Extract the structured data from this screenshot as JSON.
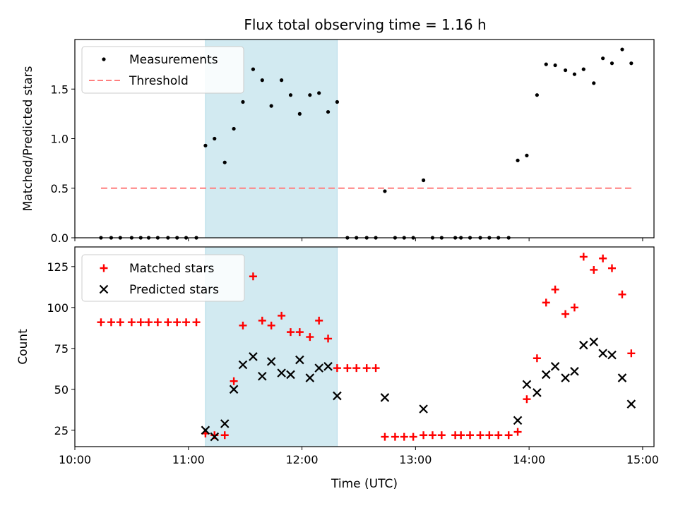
{
  "chart_data": {
    "type": "scatter",
    "title": "Flux total observing time = 1.16 h",
    "xlabel": "Time (UTC)",
    "xlim": [
      10.0,
      15.1
    ],
    "xticks": [
      {
        "v": 10,
        "label": "10:00"
      },
      {
        "v": 11,
        "label": "11:00"
      },
      {
        "v": 12,
        "label": "12:00"
      },
      {
        "v": 13,
        "label": "13:00"
      },
      {
        "v": 14,
        "label": "14:00"
      },
      {
        "v": 15,
        "label": "15:00"
      }
    ],
    "shaded_region": {
      "x": [
        11.15,
        12.31
      ],
      "color": "#add8e6"
    },
    "panels": [
      {
        "ylabel": "Matched/Predicted stars",
        "ylim": [
          0,
          2.0
        ],
        "yticks": [
          {
            "v": 0,
            "label": "0.0"
          },
          {
            "v": 0.5,
            "label": "0.5"
          },
          {
            "v": 1.0,
            "label": "1.0"
          },
          {
            "v": 1.5,
            "label": "1.5"
          }
        ],
        "legend": [
          {
            "label": "Measurements",
            "marker": "dot",
            "color": "#000000"
          },
          {
            "label": "Threshold",
            "marker": "dashed-line",
            "color": "#ff7f7f"
          }
        ],
        "threshold": {
          "y": 0.5,
          "x": [
            10.23,
            14.9
          ],
          "color": "#ff7f7f"
        },
        "measurements": [
          [
            10.23,
            0
          ],
          [
            10.32,
            0
          ],
          [
            10.4,
            0
          ],
          [
            10.5,
            0
          ],
          [
            10.58,
            0
          ],
          [
            10.65,
            0
          ],
          [
            10.73,
            0
          ],
          [
            10.82,
            0
          ],
          [
            10.9,
            0
          ],
          [
            10.98,
            0
          ],
          [
            11.07,
            0
          ],
          [
            11.15,
            0.93
          ],
          [
            11.23,
            1.0
          ],
          [
            11.32,
            0.76
          ],
          [
            11.4,
            1.1
          ],
          [
            11.48,
            1.37
          ],
          [
            11.57,
            1.7
          ],
          [
            11.65,
            1.59
          ],
          [
            11.73,
            1.33
          ],
          [
            11.82,
            1.59
          ],
          [
            11.9,
            1.44
          ],
          [
            11.98,
            1.25
          ],
          [
            12.07,
            1.44
          ],
          [
            12.15,
            1.46
          ],
          [
            12.23,
            1.27
          ],
          [
            12.31,
            1.37
          ],
          [
            12.4,
            0
          ],
          [
            12.48,
            0
          ],
          [
            12.57,
            0
          ],
          [
            12.65,
            0
          ],
          [
            12.73,
            0.47
          ],
          [
            12.82,
            0
          ],
          [
            12.9,
            0
          ],
          [
            12.98,
            0
          ],
          [
            13.07,
            0.58
          ],
          [
            13.15,
            0
          ],
          [
            13.23,
            0
          ],
          [
            13.35,
            0
          ],
          [
            13.4,
            0
          ],
          [
            13.48,
            0
          ],
          [
            13.57,
            0
          ],
          [
            13.65,
            0
          ],
          [
            13.73,
            0
          ],
          [
            13.82,
            0
          ],
          [
            13.9,
            0.78
          ],
          [
            13.98,
            0.83
          ],
          [
            14.07,
            1.44
          ],
          [
            14.15,
            1.75
          ],
          [
            14.23,
            1.74
          ],
          [
            14.32,
            1.69
          ],
          [
            14.4,
            1.65
          ],
          [
            14.48,
            1.7
          ],
          [
            14.57,
            1.56
          ],
          [
            14.65,
            1.81
          ],
          [
            14.73,
            1.76
          ],
          [
            14.82,
            1.9
          ],
          [
            14.9,
            1.76
          ]
        ]
      },
      {
        "ylabel": "Count",
        "ylim": [
          15,
          137
        ],
        "yticks": [
          {
            "v": 25,
            "label": "25"
          },
          {
            "v": 50,
            "label": "50"
          },
          {
            "v": 75,
            "label": "75"
          },
          {
            "v": 100,
            "label": "100"
          },
          {
            "v": 125,
            "label": "125"
          }
        ],
        "legend": [
          {
            "label": "Matched stars",
            "marker": "plus",
            "color": "#ff0000"
          },
          {
            "label": "Predicted stars",
            "marker": "x",
            "color": "#000000"
          }
        ],
        "matched": [
          [
            10.23,
            91
          ],
          [
            10.32,
            91
          ],
          [
            10.4,
            91
          ],
          [
            10.5,
            91
          ],
          [
            10.58,
            91
          ],
          [
            10.65,
            91
          ],
          [
            10.73,
            91
          ],
          [
            10.82,
            91
          ],
          [
            10.9,
            91
          ],
          [
            10.98,
            91
          ],
          [
            11.07,
            91
          ],
          [
            11.15,
            23
          ],
          [
            11.23,
            22
          ],
          [
            11.32,
            22
          ],
          [
            11.4,
            55
          ],
          [
            11.48,
            89
          ],
          [
            11.57,
            119
          ],
          [
            11.65,
            92
          ],
          [
            11.73,
            89
          ],
          [
            11.82,
            95
          ],
          [
            11.9,
            85
          ],
          [
            11.98,
            85
          ],
          [
            12.07,
            82
          ],
          [
            12.15,
            92
          ],
          [
            12.23,
            81
          ],
          [
            12.31,
            63
          ],
          [
            12.4,
            63
          ],
          [
            12.48,
            63
          ],
          [
            12.57,
            63
          ],
          [
            12.65,
            63
          ],
          [
            12.73,
            21
          ],
          [
            12.82,
            21
          ],
          [
            12.9,
            21
          ],
          [
            12.98,
            21
          ],
          [
            13.07,
            22
          ],
          [
            13.15,
            22
          ],
          [
            13.23,
            22
          ],
          [
            13.35,
            22
          ],
          [
            13.4,
            22
          ],
          [
            13.48,
            22
          ],
          [
            13.57,
            22
          ],
          [
            13.65,
            22
          ],
          [
            13.73,
            22
          ],
          [
            13.82,
            22
          ],
          [
            13.9,
            24
          ],
          [
            13.98,
            44
          ],
          [
            14.07,
            69
          ],
          [
            14.15,
            103
          ],
          [
            14.23,
            111
          ],
          [
            14.32,
            96
          ],
          [
            14.4,
            100
          ],
          [
            14.48,
            131
          ],
          [
            14.57,
            123
          ],
          [
            14.65,
            130
          ],
          [
            14.73,
            124
          ],
          [
            14.82,
            108
          ],
          [
            14.9,
            72
          ]
        ],
        "predicted": [
          [
            11.15,
            25
          ],
          [
            11.23,
            21
          ],
          [
            11.32,
            29
          ],
          [
            11.4,
            50
          ],
          [
            11.48,
            65
          ],
          [
            11.57,
            70
          ],
          [
            11.65,
            58
          ],
          [
            11.73,
            67
          ],
          [
            11.82,
            60
          ],
          [
            11.9,
            59
          ],
          [
            11.98,
            68
          ],
          [
            12.07,
            57
          ],
          [
            12.15,
            63
          ],
          [
            12.23,
            64
          ],
          [
            12.31,
            46
          ],
          [
            12.73,
            45
          ],
          [
            13.07,
            38
          ],
          [
            13.9,
            31
          ],
          [
            13.98,
            53
          ],
          [
            14.07,
            48
          ],
          [
            14.15,
            59
          ],
          [
            14.23,
            64
          ],
          [
            14.32,
            57
          ],
          [
            14.4,
            61
          ],
          [
            14.48,
            77
          ],
          [
            14.57,
            79
          ],
          [
            14.65,
            72
          ],
          [
            14.73,
            71
          ],
          [
            14.82,
            57
          ],
          [
            14.9,
            41
          ]
        ]
      }
    ]
  }
}
